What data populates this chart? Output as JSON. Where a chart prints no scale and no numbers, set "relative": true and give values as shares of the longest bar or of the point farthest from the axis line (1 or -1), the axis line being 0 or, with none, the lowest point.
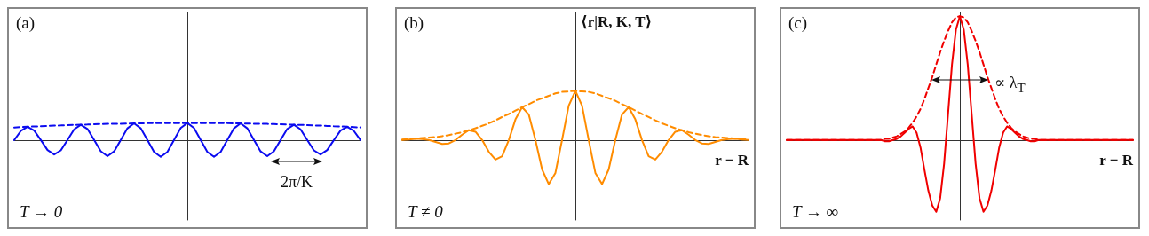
{
  "chart_data": [
    {
      "type": "line",
      "title": "(a)",
      "relative": true,
      "marker": "none",
      "grid": false,
      "annotations": [
        "T → 0",
        "2π/K"
      ],
      "categories": [
        null,
        null,
        null,
        null,
        null,
        null,
        null,
        null,
        null,
        null,
        null,
        null,
        null,
        null,
        null,
        null,
        null,
        null,
        null,
        null,
        null,
        null,
        null,
        null,
        null,
        null,
        null,
        null,
        null,
        null,
        null,
        null,
        null,
        null,
        null,
        null,
        null,
        null,
        null,
        null,
        null,
        null,
        null,
        null,
        null,
        null,
        null,
        null,
        null,
        null,
        null,
        null,
        null
      ],
      "series": [
        {
          "color": "#0b0bf0",
          "line_style": "solid",
          "values": [
            0,
            0.54,
            0.78,
            0.56,
            0,
            -0.59,
            -0.85,
            -0.61,
            0,
            0.63,
            0.9,
            0.65,
            0,
            -0.66,
            -0.95,
            -0.67,
            0,
            0.69,
            0.98,
            0.69,
            0,
            -0.7,
            -0.99,
            -0.7,
            0,
            0.71,
            1,
            0.71,
            0,
            -0.7,
            -0.99,
            -0.7,
            0,
            0.69,
            0.98,
            0.69,
            0,
            -0.67,
            -0.95,
            -0.66,
            0,
            0.65,
            0.9,
            0.63,
            0,
            -0.61,
            -0.85,
            -0.59,
            0,
            0.56,
            0.78,
            0.54,
            0
          ]
        },
        {
          "color": "#0b0bf0",
          "line_style": "dashed",
          "values": [
            0.74,
            0.76,
            0.78,
            0.8,
            0.81,
            0.83,
            0.85,
            0.86,
            0.88,
            0.89,
            0.9,
            0.91,
            0.93,
            0.94,
            0.95,
            0.95,
            0.96,
            0.97,
            0.98,
            0.98,
            0.99,
            0.99,
            0.99,
            1,
            1,
            1,
            1,
            1,
            1,
            1,
            0.99,
            0.99,
            0.99,
            0.98,
            0.98,
            0.97,
            0.96,
            0.95,
            0.95,
            0.94,
            0.93,
            0.91,
            0.9,
            0.89,
            0.88,
            0.86,
            0.85,
            0.83,
            0.81,
            0.8,
            0.78,
            0.76,
            0.74
          ]
        }
      ]
    },
    {
      "type": "line",
      "title": "(b)",
      "relative": true,
      "marker": "none",
      "grid": false,
      "xlabel": "r − R",
      "ylabel": "⟨r|R, K, T⟩",
      "annotations": [
        "T ≠ 0"
      ],
      "categories": [
        null,
        null,
        null,
        null,
        null,
        null,
        null,
        null,
        null,
        null,
        null,
        null,
        null,
        null,
        null,
        null,
        null,
        null,
        null,
        null,
        null,
        null,
        null,
        null,
        null,
        null,
        null,
        null,
        null,
        null,
        null,
        null,
        null,
        null,
        null,
        null,
        null,
        null,
        null,
        null,
        null,
        null,
        null,
        null,
        null,
        null,
        null,
        null,
        null,
        null,
        null,
        null,
        null
      ],
      "series": [
        {
          "color": "#ff8c00",
          "line_style": "solid",
          "values": [
            0,
            0.01,
            0.03,
            0.02,
            0,
            -0.04,
            -0.08,
            -0.07,
            0,
            0.11,
            0.2,
            0.17,
            0,
            -0.24,
            -0.4,
            -0.33,
            0,
            0.42,
            0.67,
            0.52,
            0,
            -0.6,
            -0.9,
            -0.67,
            0,
            0.7,
            1,
            0.7,
            0,
            -0.67,
            -0.9,
            -0.6,
            0,
            0.52,
            0.67,
            0.42,
            0,
            -0.33,
            -0.4,
            -0.24,
            0,
            0.17,
            0.2,
            0.11,
            0,
            -0.07,
            -0.08,
            -0.04,
            0,
            0.02,
            0.03,
            0.01,
            0
          ]
        },
        {
          "color": "#ff8c00",
          "line_style": "dashed",
          "values": [
            0.01,
            0.02,
            0.03,
            0.04,
            0.05,
            0.06,
            0.08,
            0.1,
            0.13,
            0.16,
            0.2,
            0.24,
            0.29,
            0.34,
            0.4,
            0.47,
            0.53,
            0.6,
            0.67,
            0.73,
            0.8,
            0.85,
            0.9,
            0.95,
            0.98,
            0.99,
            1,
            0.99,
            0.98,
            0.95,
            0.9,
            0.85,
            0.8,
            0.73,
            0.67,
            0.6,
            0.53,
            0.47,
            0.4,
            0.34,
            0.29,
            0.24,
            0.2,
            0.16,
            0.13,
            0.1,
            0.08,
            0.06,
            0.05,
            0.04,
            0.03,
            0.02,
            0.01
          ]
        }
      ]
    },
    {
      "type": "line",
      "title": "(c)",
      "relative": true,
      "marker": "none",
      "grid": false,
      "xlabel": "r − R",
      "annotations": [
        "T → ∞",
        "∝ λ$_{T}$"
      ],
      "categories": [
        null,
        null,
        null,
        null,
        null,
        null,
        null,
        null,
        null,
        null,
        null,
        null,
        null,
        null,
        null,
        null,
        null,
        null,
        null,
        null,
        null,
        null,
        null,
        null,
        null,
        null,
        null,
        null,
        null,
        null,
        null,
        null,
        null,
        null,
        null,
        null,
        null,
        null,
        null,
        null,
        null,
        null,
        null,
        null,
        null,
        null,
        null,
        null,
        null,
        null,
        null,
        null,
        null,
        null,
        null,
        null,
        null,
        null,
        null,
        null,
        null,
        null,
        null,
        null,
        null,
        null,
        null,
        null,
        null,
        null,
        null,
        null,
        null,
        null,
        null,
        null,
        null,
        null,
        null,
        null,
        null,
        null,
        null,
        null,
        null,
        null,
        null,
        null,
        null
      ],
      "series": [
        {
          "color": "#f00000",
          "line_style": "solid",
          "values": [
            0,
            0,
            0,
            0,
            0,
            0,
            0,
            0,
            0,
            0,
            0,
            0,
            0,
            0,
            0,
            0,
            0,
            0,
            0,
            0,
            0,
            0,
            0,
            0,
            0,
            -0.01,
            -0.01,
            0,
            0.01,
            0.03,
            0.06,
            0.09,
            0.11,
            0.06,
            -0.06,
            -0.24,
            -0.41,
            -0.53,
            -0.58,
            -0.47,
            -0.19,
            0.21,
            0.61,
            0.89,
            1,
            0.89,
            0.61,
            0.21,
            -0.19,
            -0.47,
            -0.58,
            -0.53,
            -0.41,
            -0.24,
            -0.06,
            0.06,
            0.11,
            0.09,
            0.06,
            0.03,
            0.01,
            0,
            -0.01,
            -0.01,
            0,
            0,
            0,
            0,
            0,
            0,
            0,
            0,
            0,
            0,
            0,
            0,
            0,
            0,
            0,
            0,
            0,
            0,
            0,
            0,
            0,
            0,
            0,
            0,
            0
          ]
        },
        {
          "color": "#f00000",
          "line_style": "dashed",
          "values": [
            0,
            0,
            0,
            0,
            0,
            0,
            0,
            0,
            0,
            0,
            0,
            0,
            0,
            0,
            0,
            0,
            0,
            0,
            0,
            0,
            0,
            0,
            0,
            0,
            0,
            0.01,
            0.01,
            0.02,
            0.03,
            0.05,
            0.07,
            0.1,
            0.14,
            0.19,
            0.25,
            0.33,
            0.42,
            0.51,
            0.61,
            0.71,
            0.8,
            0.88,
            0.95,
            0.99,
            1,
            0.99,
            0.95,
            0.88,
            0.8,
            0.71,
            0.61,
            0.51,
            0.42,
            0.33,
            0.25,
            0.19,
            0.14,
            0.1,
            0.07,
            0.05,
            0.03,
            0.02,
            0.01,
            0.01,
            0,
            0,
            0,
            0,
            0,
            0,
            0,
            0,
            0,
            0,
            0,
            0,
            0,
            0,
            0,
            0,
            0,
            0,
            0,
            0,
            0,
            0,
            0,
            0,
            0
          ]
        }
      ]
    }
  ]
}
